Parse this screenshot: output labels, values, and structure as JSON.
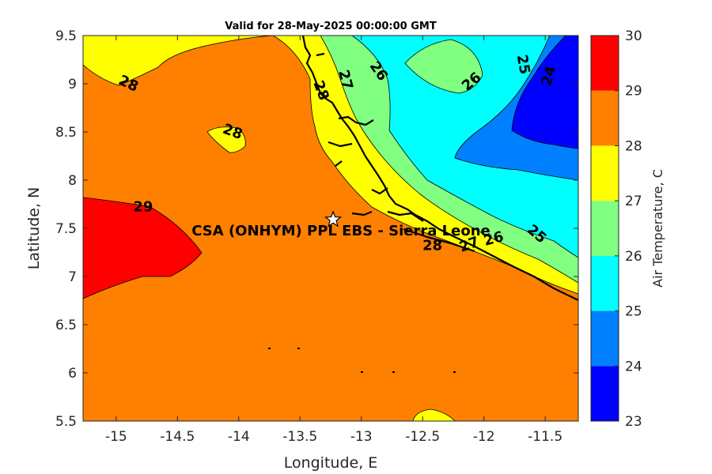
{
  "title": "Valid for 28-May-2025 00:00:00 GMT",
  "x_axis": {
    "label": "Longitude, E",
    "ticks": [
      -15,
      -14.5,
      -14,
      -13.5,
      -13,
      -12.5,
      -12,
      -11.5
    ],
    "tick_labels": [
      "-15",
      "-14.5",
      "-14",
      "-13.5",
      "-13",
      "-12.5",
      "-12",
      "-11.5"
    ],
    "range": [
      -15.27,
      -11.23
    ]
  },
  "y_axis": {
    "label": "Latitude, N",
    "ticks": [
      5.5,
      6,
      6.5,
      7,
      7.5,
      8,
      8.5,
      9,
      9.5
    ],
    "tick_labels": [
      "5.5",
      "6",
      "6.5",
      "7",
      "7.5",
      "8",
      "8.5",
      "9",
      "9.5"
    ],
    "range": [
      5.5,
      9.5
    ]
  },
  "colorbar": {
    "label": "Air Temperature, C",
    "levels": [
      23,
      24,
      25,
      26,
      27,
      28,
      29,
      30
    ],
    "level_labels": [
      "23",
      "24",
      "25",
      "26",
      "27",
      "28",
      "29",
      "30"
    ],
    "colors": [
      "#0000ff",
      "#0080ff",
      "#00ffff",
      "#80ff80",
      "#ffff00",
      "#ff8000",
      "#ff0000",
      "#800000"
    ]
  },
  "site": {
    "name": "CSA (ONHYM) PPL EBS  - Sierra Leone",
    "lon": -13.23,
    "lat": 7.59,
    "marker": "star-icon"
  },
  "contour_labels": [
    {
      "text": "28",
      "lon": -14.9,
      "lat": 9.0,
      "rot": 25
    },
    {
      "text": "28",
      "lon": -14.05,
      "lat": 8.5,
      "rot": 20
    },
    {
      "text": "29",
      "lon": -14.78,
      "lat": 7.72,
      "rot": 0
    },
    {
      "text": "28",
      "lon": -13.33,
      "lat": 8.93,
      "rot": 70
    },
    {
      "text": "27",
      "lon": -13.13,
      "lat": 9.04,
      "rot": 75
    },
    {
      "text": "26",
      "lon": -12.86,
      "lat": 9.13,
      "rot": 55
    },
    {
      "text": "26",
      "lon": -12.1,
      "lat": 9.02,
      "rot": -40
    },
    {
      "text": "25",
      "lon": -11.68,
      "lat": 9.2,
      "rot": 80
    },
    {
      "text": "24",
      "lon": -11.47,
      "lat": 9.08,
      "rot": -75
    },
    {
      "text": "25",
      "lon": -11.57,
      "lat": 7.44,
      "rot": 40
    },
    {
      "text": "26",
      "lon": -11.92,
      "lat": 7.39,
      "rot": -15
    },
    {
      "text": "27",
      "lon": -12.12,
      "lat": 7.33,
      "rot": -20
    },
    {
      "text": "28",
      "lon": -12.42,
      "lat": 7.32,
      "rot": 0
    }
  ]
}
